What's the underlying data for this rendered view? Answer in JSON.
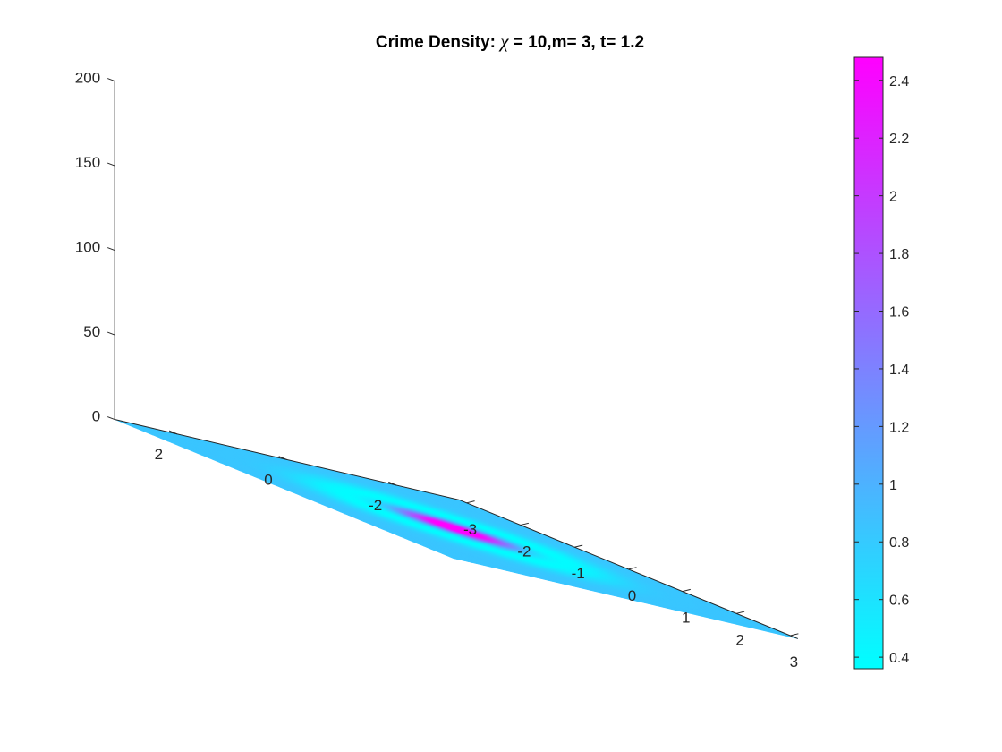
{
  "chart_data": {
    "type": "surface",
    "title_prefix": "Crime Density: ",
    "title_symbol": "χ",
    "title_suffix": " = 10,m= 3, t= 1.2",
    "x": {
      "range": [
        -3.14,
        3.14
      ],
      "ticks": [
        -3,
        -2,
        -1,
        0,
        1,
        2,
        3
      ]
    },
    "y": {
      "range": [
        -3.14,
        3.14
      ],
      "ticks": [
        -2,
        0,
        2
      ]
    },
    "z": {
      "range": [
        0,
        200
      ],
      "ticks": [
        0,
        50,
        100,
        150,
        200
      ]
    },
    "surface": {
      "description_values": "Flat surface at z ≈ 0; color encodes density",
      "baseline_density": 0.84,
      "peak_density": 2.48,
      "peak_location": [
        0,
        0
      ],
      "ring_min_density": 0.36,
      "ring_min_radius": 1.35
    },
    "colorbar": {
      "range": [
        0.36,
        2.48
      ],
      "ticks": [
        0.4,
        0.6,
        0.8,
        1,
        1.2,
        1.4,
        1.6,
        1.8,
        2,
        2.2,
        2.4
      ],
      "tick_labels": [
        "0.4",
        "0.6",
        "0.8",
        "1",
        "1.2",
        "1.4",
        "1.6",
        "1.8",
        "2",
        "2.2",
        "2.4"
      ],
      "colormap": "cool",
      "color_low": "#00ffff",
      "color_high": "#ff00ff"
    },
    "grid": false,
    "legend": "none"
  }
}
